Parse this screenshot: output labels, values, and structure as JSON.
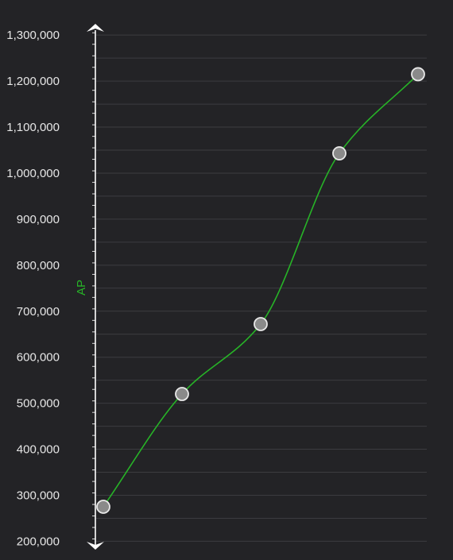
{
  "colors": {
    "background": "#232326",
    "gridline": "#3c3c40",
    "axis": "#ffffff",
    "tick_label": "#e6e6e6",
    "series_line": "#27b327",
    "ylabel": "#27b327",
    "point_fill": "#8a8a8a",
    "point_stroke": "#e8e8e8"
  },
  "chart_data": {
    "type": "line",
    "title": "",
    "xlabel": "",
    "ylabel": "AP",
    "ylim": [
      180000,
      1340000
    ],
    "yticks": [
      200000,
      300000,
      400000,
      500000,
      600000,
      700000,
      800000,
      900000,
      1000000,
      1100000,
      1200000,
      1300000
    ],
    "ytick_labels": [
      "200,000",
      "300,000",
      "400,000",
      "500,000",
      "600,000",
      "700,000",
      "800,000",
      "900,000",
      "1,000,000",
      "1,100,000",
      "1,200,000",
      "1,300,000"
    ],
    "grid": true,
    "x": [
      1,
      2,
      3,
      4,
      5
    ],
    "series": [
      {
        "values": [
          275000,
          520000,
          672000,
          1043000,
          1215000
        ]
      }
    ],
    "markers": "circle",
    "smooth": true
  }
}
